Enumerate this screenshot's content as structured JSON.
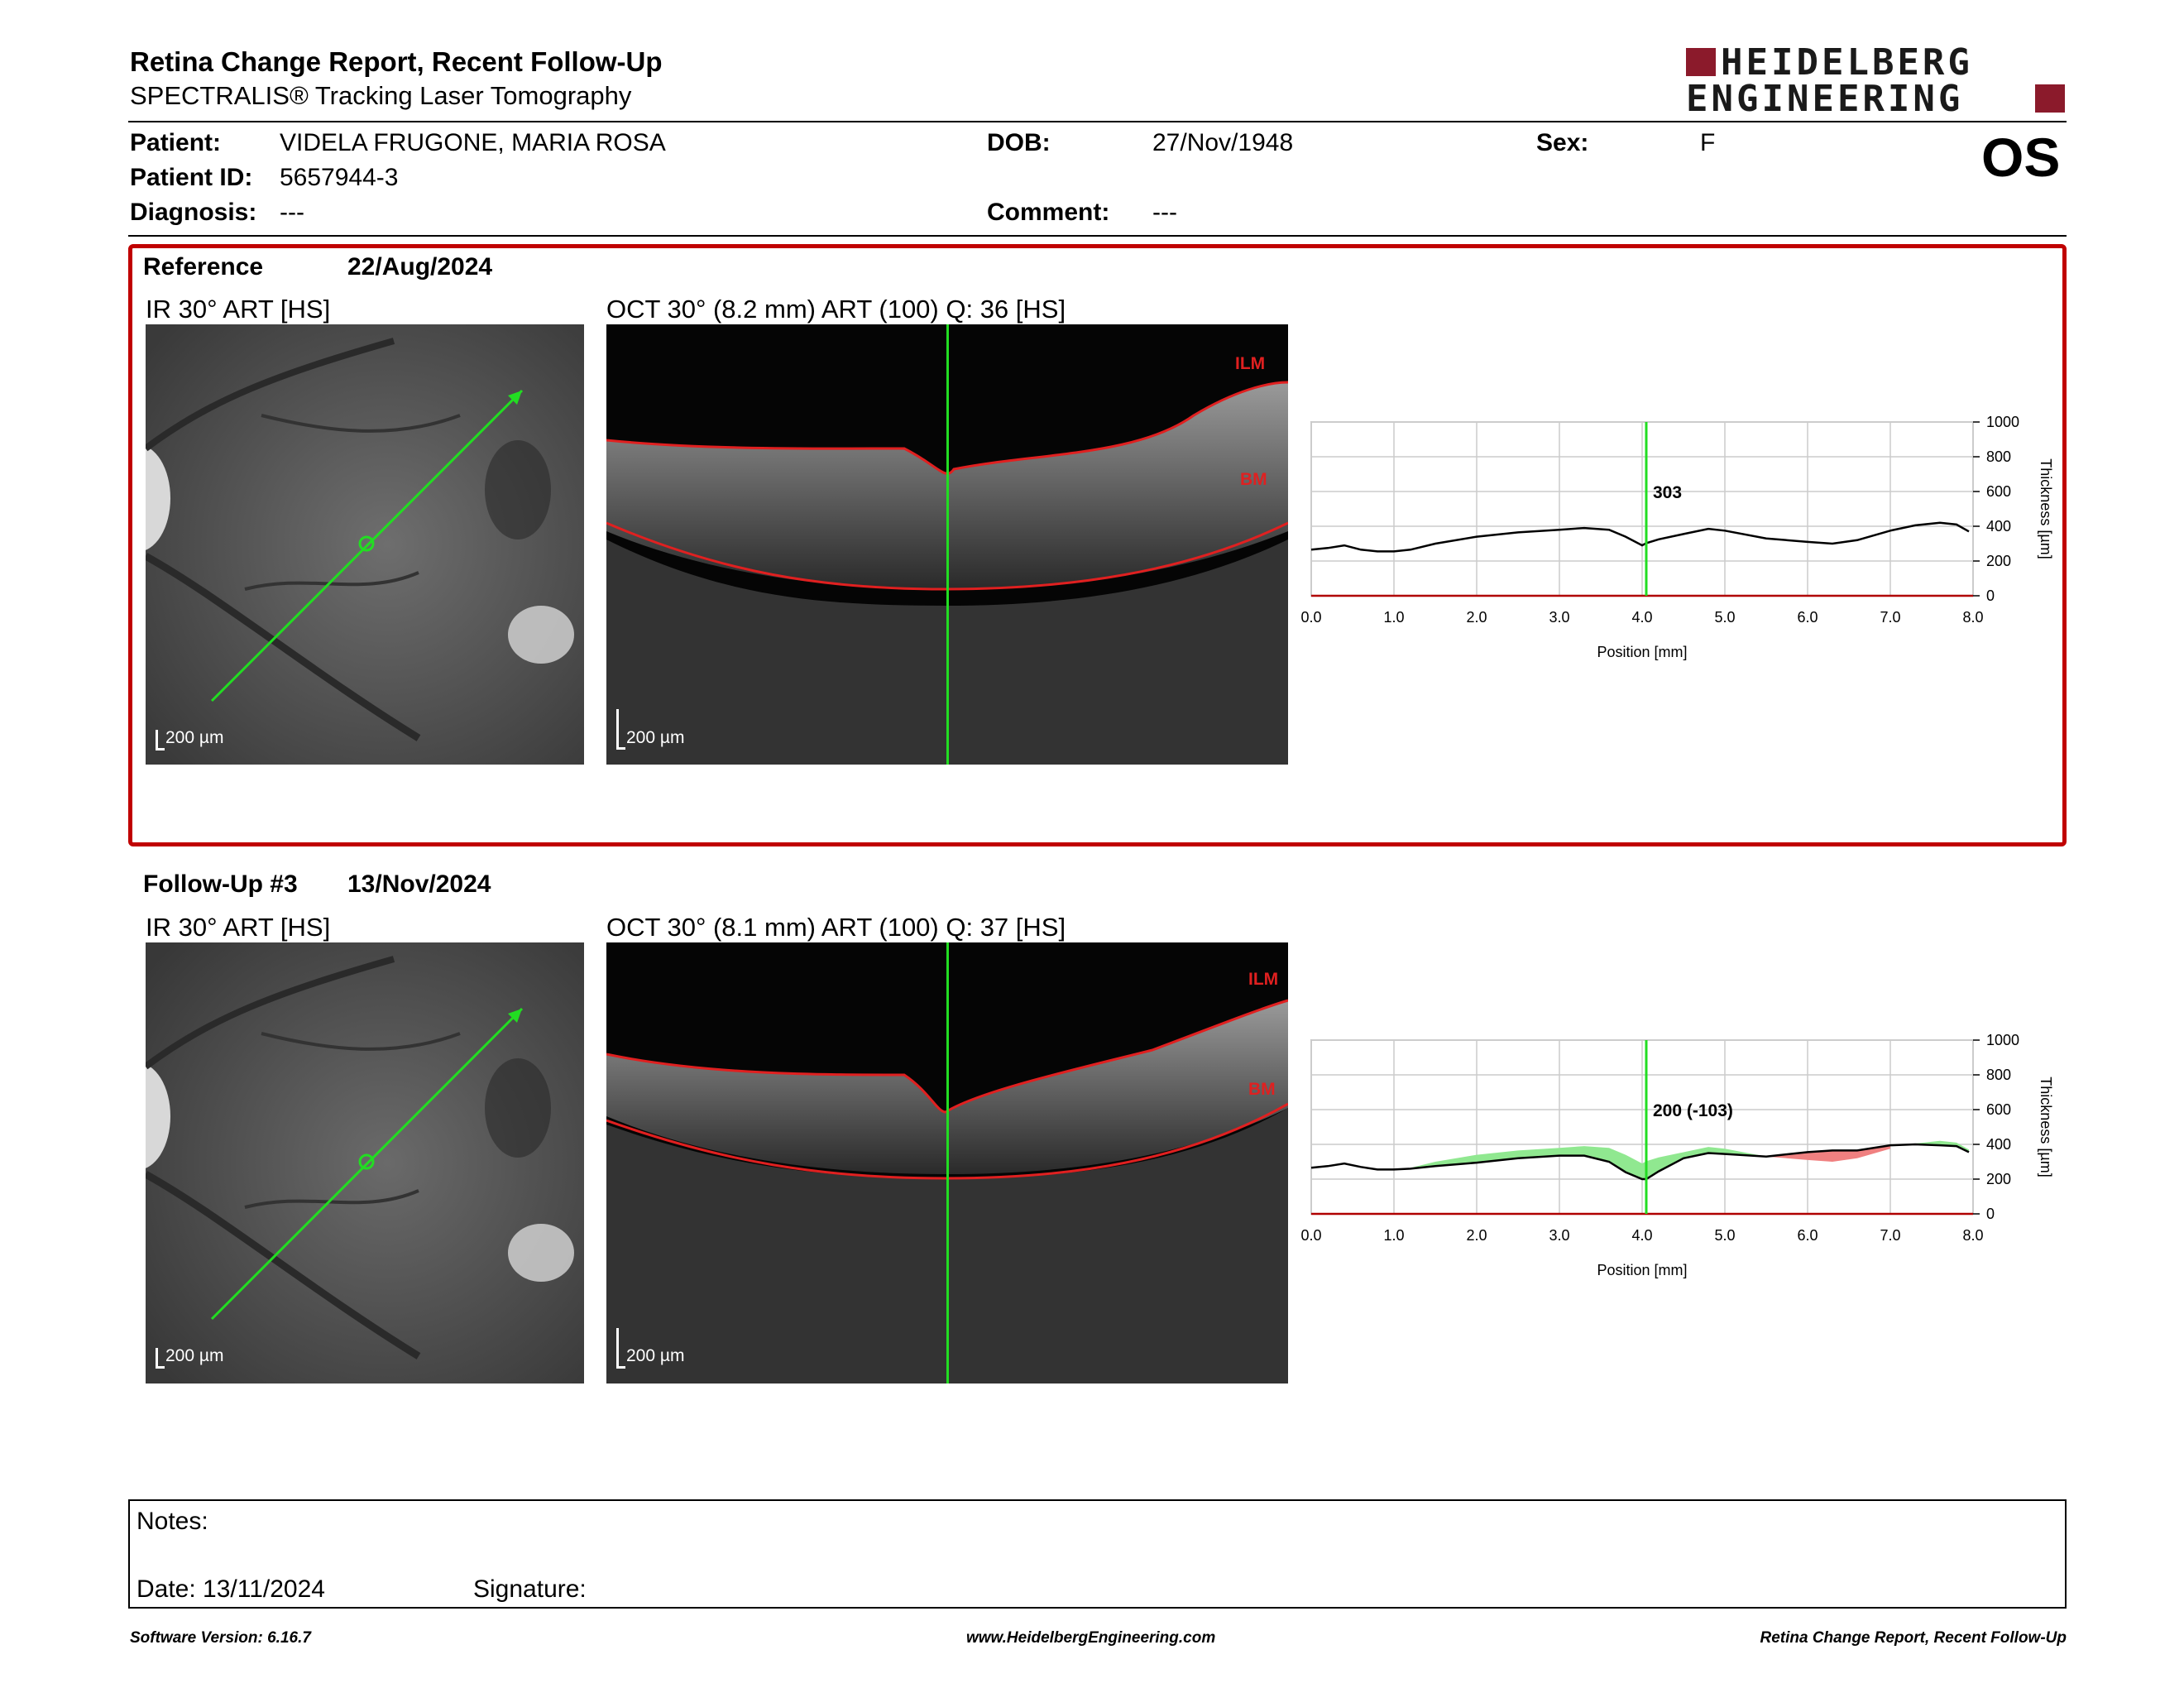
{
  "header": {
    "title": "Retina Change Report, Recent Follow-Up",
    "subtitle": "SPECTRALIS® Tracking Laser Tomography",
    "brand_line1": "HEIDELBERG",
    "brand_line2": "ENGINEERING",
    "eye": "OS",
    "brand_color": "#8b1a2b"
  },
  "patient": {
    "patient_label": "Patient:",
    "patient_name": "VIDELA FRUGONE, MARIA ROSA",
    "id_label": "Patient ID:",
    "patient_id": "5657944-3",
    "diagnosis_label": "Diagnosis:",
    "diagnosis": "---",
    "dob_label": "DOB:",
    "dob": "27/Nov/1948",
    "comment_label": "Comment:",
    "comment": "---",
    "sex_label": "Sex:",
    "sex": "F"
  },
  "reference": {
    "label": "Reference",
    "date": "22/Aug/2024",
    "ir_title": "IR 30° ART [HS]",
    "oct_title": "OCT 30° (8.2 mm) ART (100) Q: 36 [HS]",
    "ir_scale": "200 µm",
    "oct_scale": "200 µm",
    "ilm_label": "ILM",
    "bm_label": "BM",
    "cursor_value": "303"
  },
  "followup": {
    "label": "Follow-Up #3",
    "date": "13/Nov/2024",
    "ir_title": "IR 30° ART [HS]",
    "oct_title": "OCT 30° (8.1 mm) ART (100) Q: 37 [HS]",
    "ir_scale": "200 µm",
    "oct_scale": "200 µm",
    "ilm_label": "ILM",
    "bm_label": "BM",
    "cursor_value": "200 (-103)"
  },
  "chart_data": [
    {
      "type": "line",
      "xlabel": "Position [mm]",
      "ylabel": "Thickness [µm]",
      "xlim": [
        0,
        8.0
      ],
      "ylim": [
        0,
        1000
      ],
      "x_ticks": [
        "0.0",
        "1.0",
        "2.0",
        "3.0",
        "4.0",
        "5.0",
        "6.0",
        "7.0",
        "8.0"
      ],
      "y_ticks": [
        "0",
        "200",
        "400",
        "600",
        "800",
        "1000"
      ],
      "cursor_x": 4.05,
      "grid": true,
      "series": [
        {
          "x": [
            0.0,
            0.2,
            0.4,
            0.6,
            0.8,
            1.0,
            1.2,
            1.5,
            2.0,
            2.5,
            3.0,
            3.3,
            3.6,
            3.8,
            4.0,
            4.05,
            4.2,
            4.5,
            4.8,
            5.0,
            5.5,
            6.0,
            6.3,
            6.6,
            7.0,
            7.3,
            7.6,
            7.8,
            7.95
          ],
          "y": [
            265,
            275,
            290,
            265,
            255,
            255,
            265,
            300,
            340,
            365,
            380,
            390,
            380,
            340,
            290,
            303,
            325,
            355,
            385,
            375,
            330,
            310,
            300,
            320,
            375,
            405,
            420,
            410,
            370
          ]
        }
      ]
    },
    {
      "type": "line",
      "xlabel": "Position [mm]",
      "ylabel": "Thickness [µm]",
      "xlim": [
        0,
        8.0
      ],
      "ylim": [
        0,
        1000
      ],
      "x_ticks": [
        "0.0",
        "1.0",
        "2.0",
        "3.0",
        "4.0",
        "5.0",
        "6.0",
        "7.0",
        "8.0"
      ],
      "y_ticks": [
        "0",
        "200",
        "400",
        "600",
        "800",
        "1000"
      ],
      "cursor_x": 4.05,
      "grid": true,
      "series": [
        {
          "x": [
            0.0,
            0.2,
            0.4,
            0.6,
            0.8,
            1.0,
            1.2,
            1.5,
            2.0,
            2.5,
            3.0,
            3.3,
            3.6,
            3.8,
            4.0,
            4.05,
            4.2,
            4.5,
            4.8,
            5.0,
            5.5,
            6.0,
            6.3,
            6.6,
            7.0,
            7.3,
            7.6,
            7.8,
            7.95
          ],
          "y": [
            265,
            275,
            290,
            270,
            255,
            255,
            260,
            275,
            295,
            320,
            335,
            335,
            300,
            240,
            200,
            200,
            245,
            320,
            350,
            345,
            330,
            355,
            365,
            365,
            395,
            400,
            395,
            390,
            355
          ]
        }
      ]
    }
  ],
  "notes": {
    "notes_label": "Notes:",
    "date_label": "Date: 13/11/2024",
    "signature_label": "Signature:"
  },
  "footer": {
    "version": "Software Version: 6.16.7",
    "website": "www.HeidelbergEngineering.com",
    "report_name": "Retina Change Report, Recent Follow-Up"
  }
}
